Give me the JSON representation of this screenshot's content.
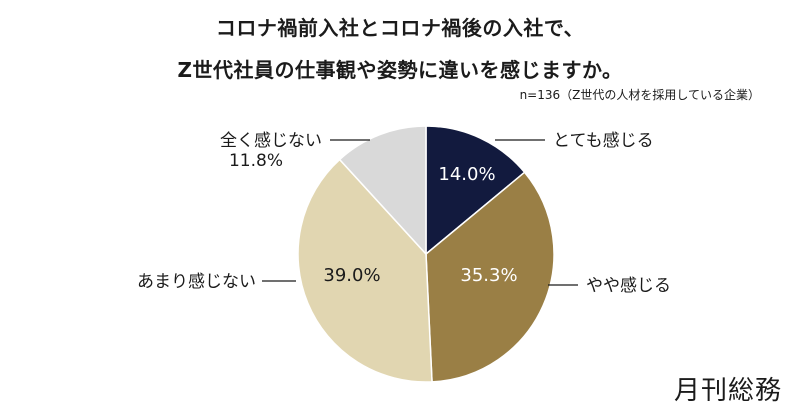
{
  "title_line1": "コロナ禍前入社とコロナ禍後の入社で、",
  "title_line2": "Z世代社員の仕事観や姿勢に違いを感じますか。",
  "note": "n=136（Z世代の人材を採用している企業）",
  "brand": "月刊総務",
  "chart_data": {
    "type": "pie",
    "title": "コロナ禍前入社とコロナ禍後の入社で、Z世代社員の仕事観や姿勢に違いを感じますか。",
    "slices": [
      {
        "label": "とても感じる",
        "value": 14.0,
        "value_label": "14.0%",
        "color": "#121a3e",
        "text_color": "#ffffff"
      },
      {
        "label": "やや感じる",
        "value": 35.3,
        "value_label": "35.3%",
        "color": "#9a7f45",
        "text_color": "#ffffff"
      },
      {
        "label": "あまり感じない",
        "value": 39.0,
        "value_label": "39.0%",
        "color": "#e1d6b1",
        "text_color": "#1b1b1b"
      },
      {
        "label": "全く感じない",
        "value": 11.8,
        "value_label": "11.8%",
        "color": "#d9d9d9",
        "text_color": "#1b1b1b"
      }
    ]
  }
}
